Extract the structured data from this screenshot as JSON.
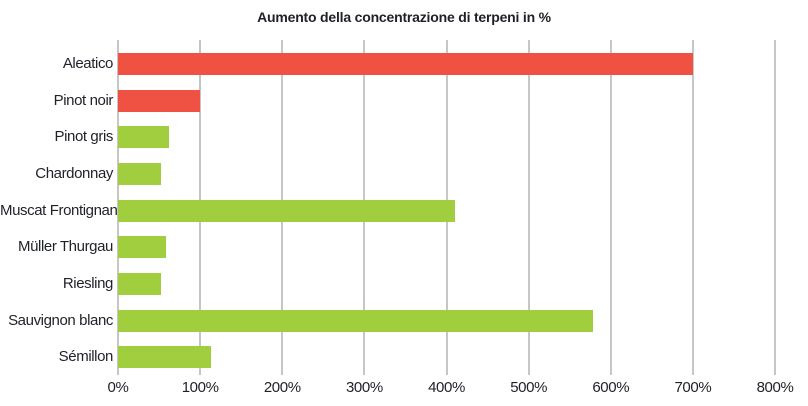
{
  "title": "Aumento della concentrazione di terpeni in %",
  "colors": {
    "red_bar": "#EF5243",
    "green_bar": "#A1CE3E",
    "gridline": "#8C8C8C",
    "text": "#1F2128",
    "background": "#FFFFFF"
  },
  "chart_data": {
    "type": "bar",
    "orientation": "horizontal",
    "title": "Aumento della concentrazione di terpeni in %",
    "categories": [
      "Aleatico",
      "Pinot noir",
      "Pinot gris",
      "Chardonnay",
      "Muscat Frontignan",
      "Müller Thurgau",
      "Riesling",
      "Sauvignon blanc",
      "Sémillon"
    ],
    "values": [
      700,
      100,
      62,
      52,
      410,
      58,
      52,
      578,
      113
    ],
    "bar_colors": [
      "#EF5243",
      "#EF5243",
      "#A1CE3E",
      "#A1CE3E",
      "#A1CE3E",
      "#A1CE3E",
      "#A1CE3E",
      "#A1CE3E",
      "#A1CE3E"
    ],
    "xlabel": "",
    "ylabel": "",
    "xlim": [
      0,
      800
    ],
    "x_tick_values": [
      0,
      100,
      200,
      300,
      400,
      500,
      600,
      700,
      800
    ],
    "x_tick_labels": [
      "0%",
      "100%",
      "200%",
      "300%",
      "400%",
      "500%",
      "600%",
      "700%",
      "800%"
    ],
    "grid": "vertical-gridlines-on",
    "legend": "none"
  }
}
